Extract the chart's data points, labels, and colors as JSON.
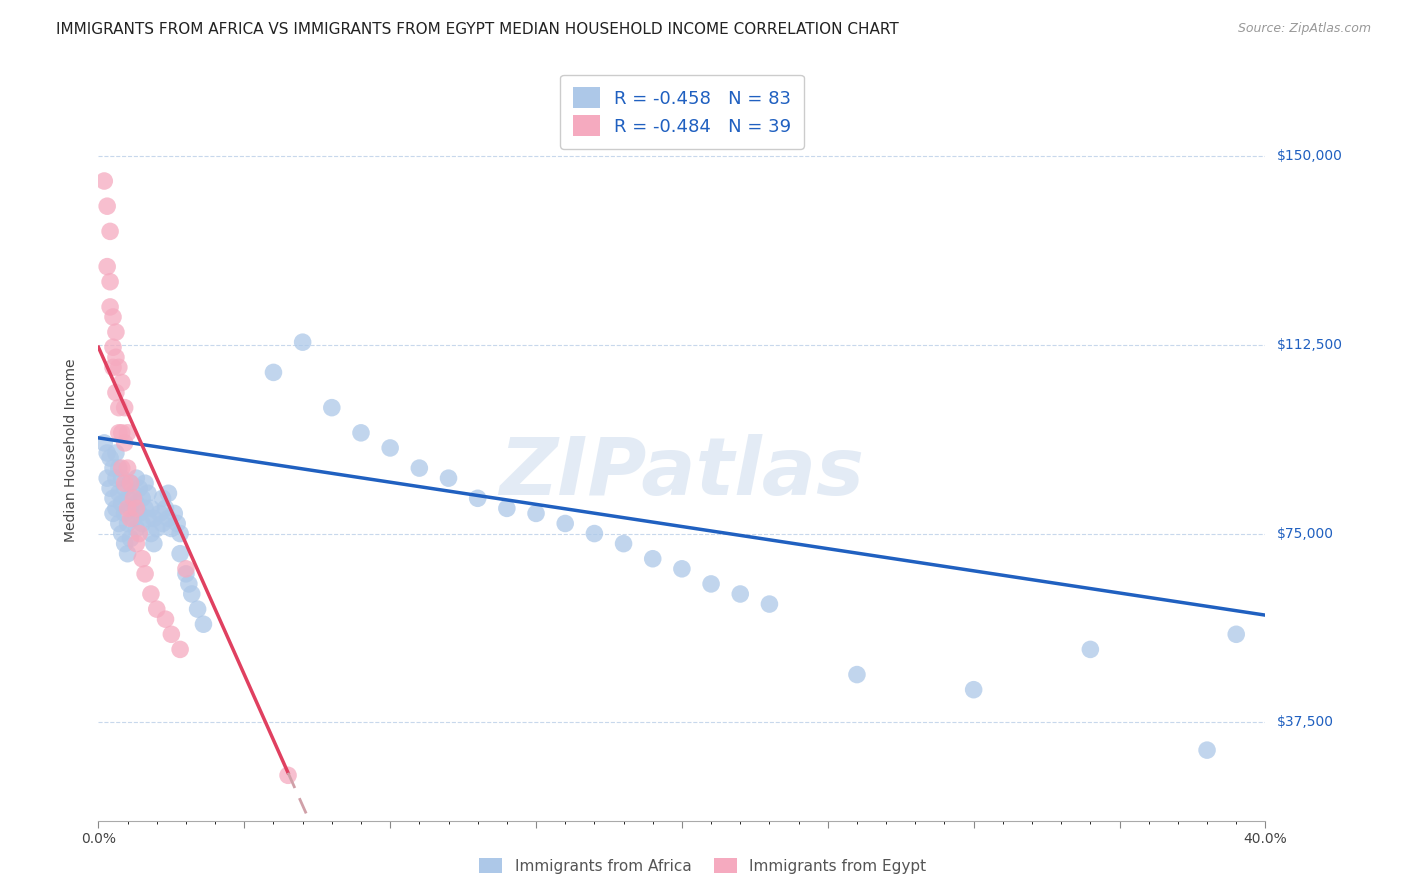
{
  "title": "IMMIGRANTS FROM AFRICA VS IMMIGRANTS FROM EGYPT MEDIAN HOUSEHOLD INCOME CORRELATION CHART",
  "source": "Source: ZipAtlas.com",
  "ylabel": "Median Household Income",
  "yticks": [
    37500,
    75000,
    112500,
    150000
  ],
  "ytick_labels": [
    "$37,500",
    "$75,000",
    "$112,500",
    "$150,000"
  ],
  "xlim": [
    0.0,
    0.4
  ],
  "ylim": [
    18000,
    165000
  ],
  "watermark": "ZIPatlas",
  "legend_r_africa": "-0.458",
  "legend_n_africa": "83",
  "legend_r_egypt": "-0.484",
  "legend_n_egypt": "39",
  "label_africa": "Immigrants from Africa",
  "label_egypt": "Immigrants from Egypt",
  "africa_color": "#adc8e8",
  "egypt_color": "#f5aabf",
  "africa_line_color": "#2060c0",
  "egypt_line_color": "#e04060",
  "egypt_line_dash_color": "#d0a0a8",
  "title_fontsize": 11,
  "axis_label_fontsize": 10,
  "tick_fontsize": 10,
  "legend_fontsize": 13,
  "africa_scatter": [
    [
      0.002,
      93000
    ],
    [
      0.003,
      91000
    ],
    [
      0.003,
      86000
    ],
    [
      0.004,
      90000
    ],
    [
      0.004,
      84000
    ],
    [
      0.005,
      88000
    ],
    [
      0.005,
      82000
    ],
    [
      0.005,
      79000
    ],
    [
      0.006,
      91000
    ],
    [
      0.006,
      86000
    ],
    [
      0.006,
      80000
    ],
    [
      0.007,
      88000
    ],
    [
      0.007,
      83000
    ],
    [
      0.007,
      77000
    ],
    [
      0.008,
      86000
    ],
    [
      0.008,
      81000
    ],
    [
      0.008,
      75000
    ],
    [
      0.009,
      84000
    ],
    [
      0.009,
      79000
    ],
    [
      0.009,
      73000
    ],
    [
      0.01,
      82000
    ],
    [
      0.01,
      77000
    ],
    [
      0.01,
      71000
    ],
    [
      0.011,
      85000
    ],
    [
      0.011,
      80000
    ],
    [
      0.011,
      74000
    ],
    [
      0.012,
      83000
    ],
    [
      0.012,
      78000
    ],
    [
      0.013,
      86000
    ],
    [
      0.013,
      81000
    ],
    [
      0.013,
      76000
    ],
    [
      0.014,
      84000
    ],
    [
      0.014,
      79000
    ],
    [
      0.015,
      82000
    ],
    [
      0.015,
      77000
    ],
    [
      0.016,
      85000
    ],
    [
      0.016,
      80000
    ],
    [
      0.017,
      83000
    ],
    [
      0.017,
      78000
    ],
    [
      0.018,
      80000
    ],
    [
      0.018,
      75000
    ],
    [
      0.019,
      78000
    ],
    [
      0.019,
      73000
    ],
    [
      0.02,
      76000
    ],
    [
      0.021,
      79000
    ],
    [
      0.022,
      77000
    ],
    [
      0.022,
      82000
    ],
    [
      0.023,
      80000
    ],
    [
      0.024,
      78000
    ],
    [
      0.024,
      83000
    ],
    [
      0.025,
      76000
    ],
    [
      0.026,
      79000
    ],
    [
      0.027,
      77000
    ],
    [
      0.028,
      75000
    ],
    [
      0.028,
      71000
    ],
    [
      0.03,
      67000
    ],
    [
      0.031,
      65000
    ],
    [
      0.032,
      63000
    ],
    [
      0.034,
      60000
    ],
    [
      0.036,
      57000
    ],
    [
      0.06,
      107000
    ],
    [
      0.07,
      113000
    ],
    [
      0.08,
      100000
    ],
    [
      0.09,
      95000
    ],
    [
      0.1,
      92000
    ],
    [
      0.11,
      88000
    ],
    [
      0.12,
      86000
    ],
    [
      0.13,
      82000
    ],
    [
      0.14,
      80000
    ],
    [
      0.15,
      79000
    ],
    [
      0.16,
      77000
    ],
    [
      0.17,
      75000
    ],
    [
      0.18,
      73000
    ],
    [
      0.19,
      70000
    ],
    [
      0.2,
      68000
    ],
    [
      0.21,
      65000
    ],
    [
      0.22,
      63000
    ],
    [
      0.23,
      61000
    ],
    [
      0.26,
      47000
    ],
    [
      0.3,
      44000
    ],
    [
      0.34,
      52000
    ],
    [
      0.38,
      32000
    ],
    [
      0.39,
      55000
    ]
  ],
  "egypt_scatter": [
    [
      0.002,
      145000
    ],
    [
      0.003,
      140000
    ],
    [
      0.003,
      128000
    ],
    [
      0.004,
      135000
    ],
    [
      0.004,
      125000
    ],
    [
      0.004,
      120000
    ],
    [
      0.005,
      118000
    ],
    [
      0.005,
      112000
    ],
    [
      0.005,
      108000
    ],
    [
      0.006,
      115000
    ],
    [
      0.006,
      110000
    ],
    [
      0.006,
      103000
    ],
    [
      0.007,
      108000
    ],
    [
      0.007,
      100000
    ],
    [
      0.007,
      95000
    ],
    [
      0.008,
      105000
    ],
    [
      0.008,
      95000
    ],
    [
      0.008,
      88000
    ],
    [
      0.009,
      100000
    ],
    [
      0.009,
      93000
    ],
    [
      0.009,
      85000
    ],
    [
      0.01,
      95000
    ],
    [
      0.01,
      88000
    ],
    [
      0.01,
      80000
    ],
    [
      0.011,
      85000
    ],
    [
      0.011,
      78000
    ],
    [
      0.012,
      82000
    ],
    [
      0.013,
      80000
    ],
    [
      0.013,
      73000
    ],
    [
      0.014,
      75000
    ],
    [
      0.015,
      70000
    ],
    [
      0.016,
      67000
    ],
    [
      0.018,
      63000
    ],
    [
      0.02,
      60000
    ],
    [
      0.023,
      58000
    ],
    [
      0.025,
      55000
    ],
    [
      0.028,
      52000
    ],
    [
      0.03,
      68000
    ],
    [
      0.065,
      27000
    ]
  ]
}
